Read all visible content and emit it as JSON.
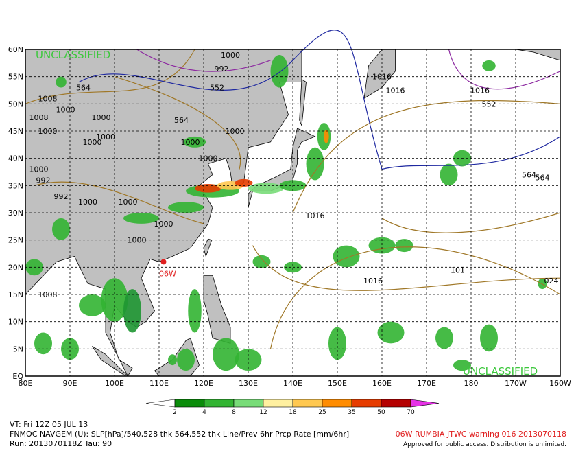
{
  "map": {
    "lat_ticks": [
      {
        "value": 60,
        "label": "60N"
      },
      {
        "value": 55,
        "label": "55N"
      },
      {
        "value": 50,
        "label": "50N"
      },
      {
        "value": 45,
        "label": "45N"
      },
      {
        "value": 40,
        "label": "40N"
      },
      {
        "value": 35,
        "label": "35N"
      },
      {
        "value": 30,
        "label": "30N"
      },
      {
        "value": 25,
        "label": "25N"
      },
      {
        "value": 20,
        "label": "20N"
      },
      {
        "value": 15,
        "label": "15N"
      },
      {
        "value": 10,
        "label": "10N"
      },
      {
        "value": 5,
        "label": "5N"
      },
      {
        "value": 0,
        "label": "EQ"
      }
    ],
    "lon_ticks": [
      {
        "value": 80,
        "label": "80E"
      },
      {
        "value": 90,
        "label": "90E"
      },
      {
        "value": 100,
        "label": "100E"
      },
      {
        "value": 110,
        "label": "110E"
      },
      {
        "value": 120,
        "label": "120E"
      },
      {
        "value": 130,
        "label": "130E"
      },
      {
        "value": 140,
        "label": "140E"
      },
      {
        "value": 150,
        "label": "150E"
      },
      {
        "value": 160,
        "label": "160E"
      },
      {
        "value": 170,
        "label": "170E"
      },
      {
        "value": 180,
        "label": "180"
      },
      {
        "value": 190,
        "label": "170W"
      },
      {
        "value": 200,
        "label": "160W"
      }
    ],
    "classification_top": "UNCLASSIFIED",
    "classification_bottom": "UNCLASSIFIED",
    "storm_label": "06W",
    "contour_labels": [
      "1000",
      "992",
      "1008",
      "1000",
      "1000",
      "1008",
      "1000",
      "1000",
      "1000",
      "1000",
      "1000",
      "992",
      "992",
      "1000",
      "1000",
      "1000",
      "1000",
      "1000",
      "1008",
      "1016",
      "1016",
      "1016",
      "1016",
      "1016",
      "101",
      "024",
      "564",
      "564",
      "564",
      "564",
      "552",
      "552",
      "1000"
    ],
    "colorbar": {
      "levels": [
        2,
        4,
        8,
        12,
        18,
        25,
        35,
        50,
        70
      ]
    }
  },
  "footer": {
    "valid_time": "VT: Fri 12Z 05 JUL 13",
    "description": "FNMOC NAVGEM (U): SLP[hPa]/540,528 thk 564,552 thk Line/Prev 6hr Prcp Rate [mm/6hr]",
    "run": "Run: 2013070118Z Tau: 90",
    "warning": "06W RUMBIA JTWC warning 016 2013070118",
    "approval": "Approved for public access. Distribution is unlimited."
  }
}
